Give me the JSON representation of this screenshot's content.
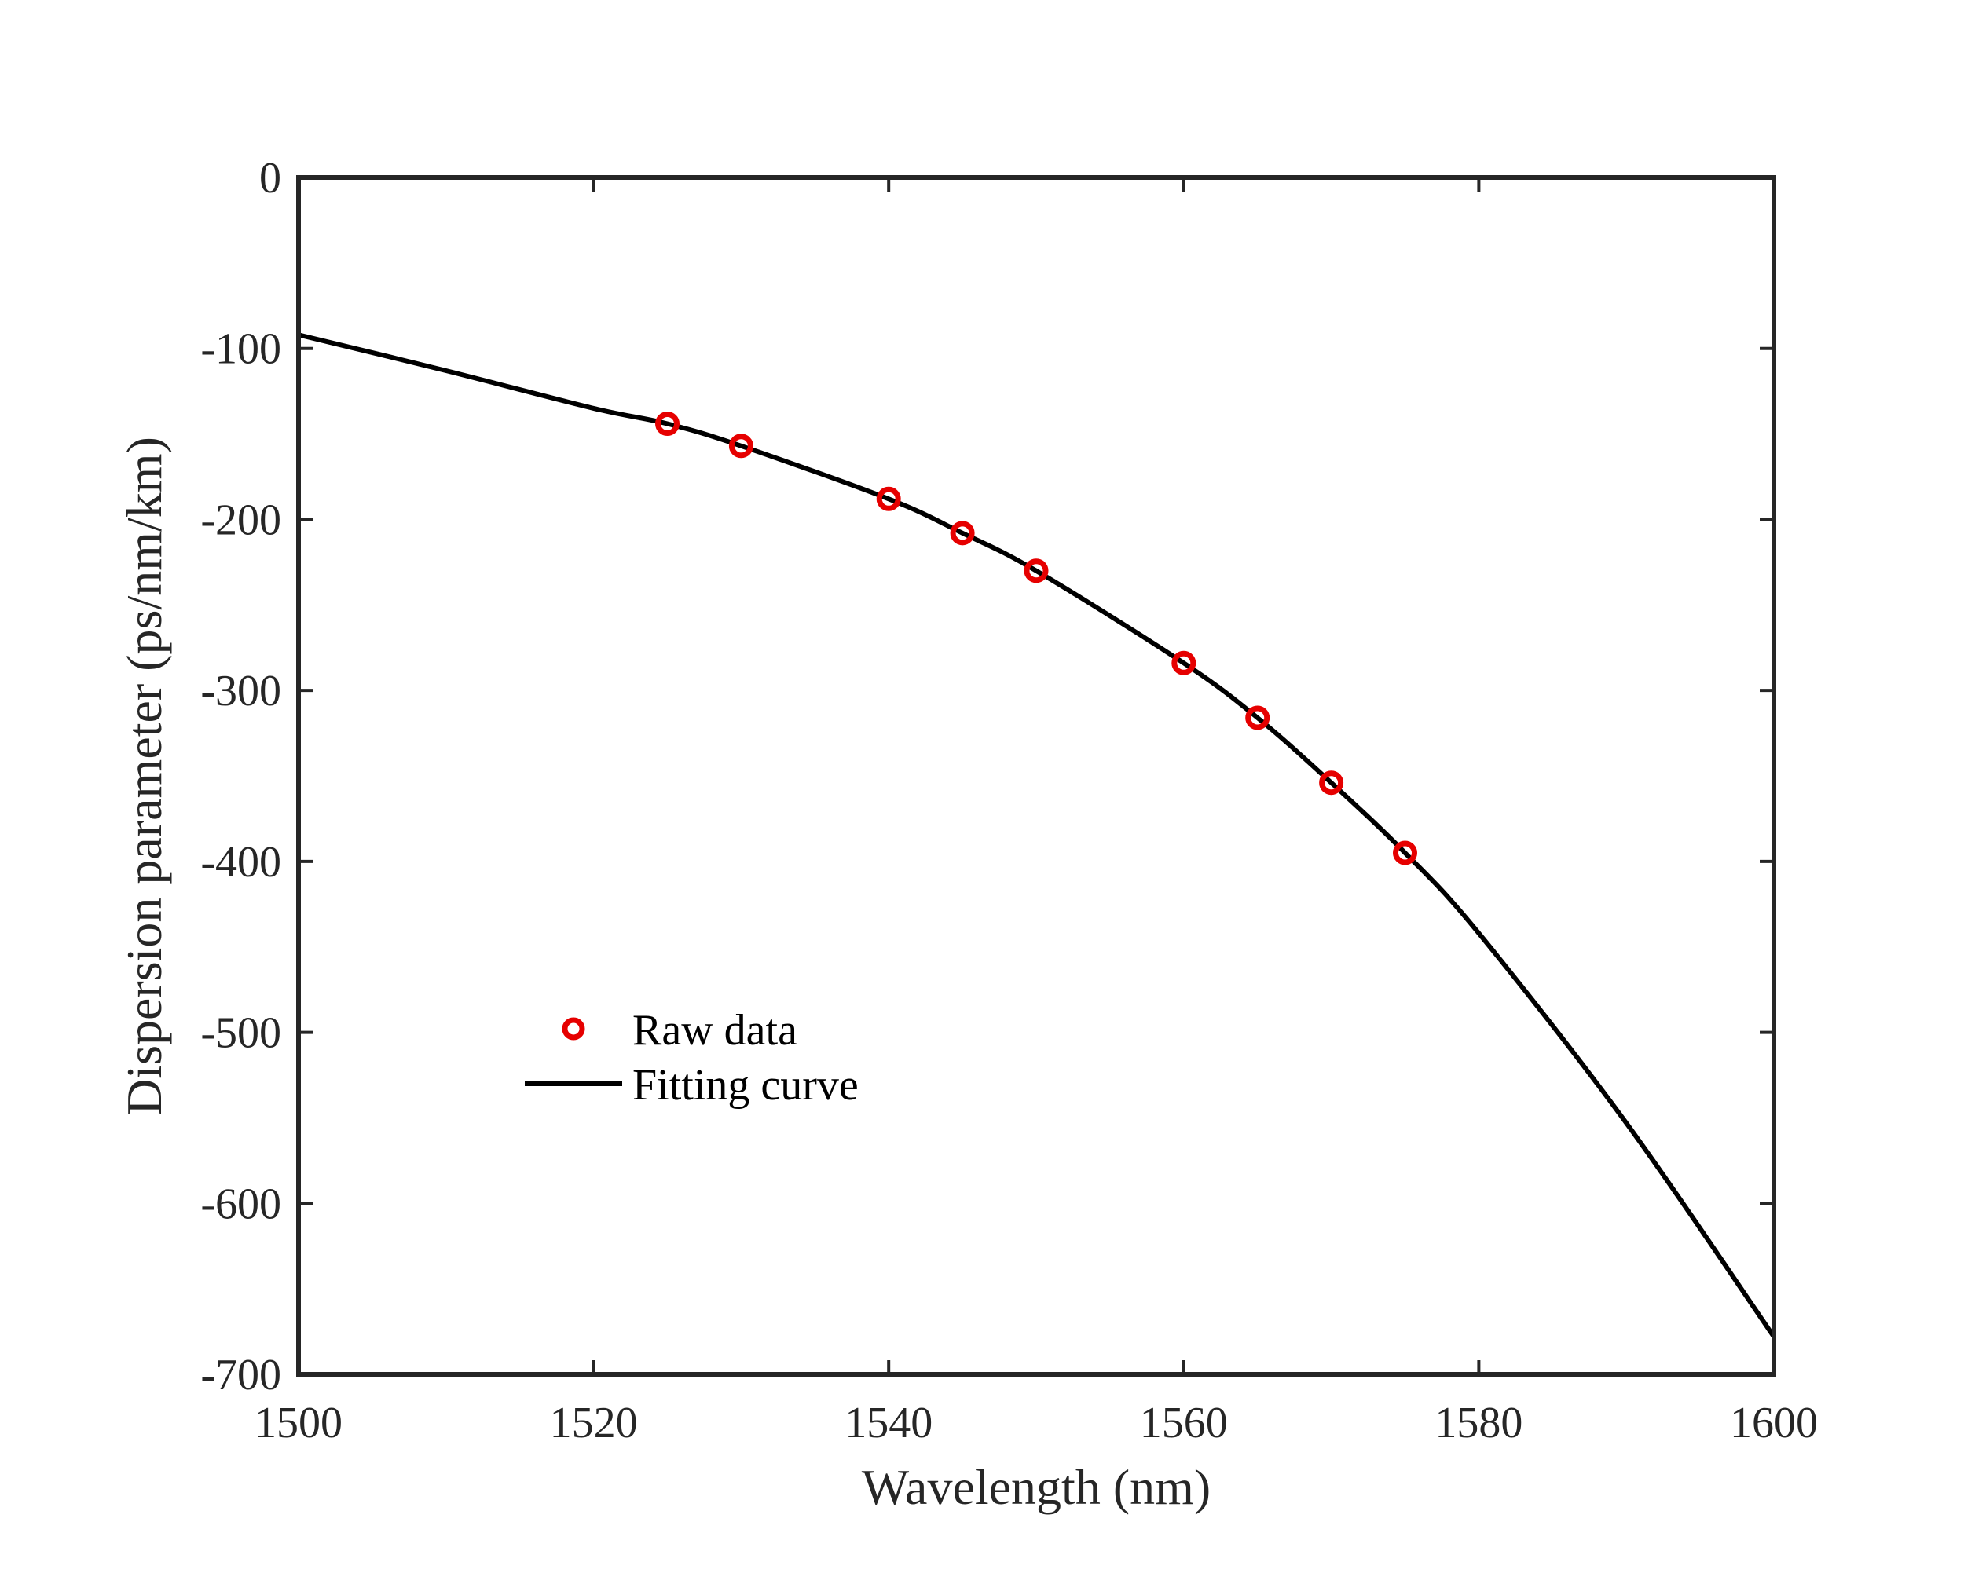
{
  "colors": {
    "axis": "#262626",
    "fit_line": "#000000",
    "raw_marker": "#e60000",
    "background": "#ffffff"
  },
  "chart_data": {
    "type": "scatter",
    "title": "",
    "xlabel": "Wavelength (nm)",
    "ylabel": "Dispersion parameter (ps/nm/km)",
    "xlim": [
      1500,
      1600
    ],
    "ylim": [
      -700,
      0
    ],
    "x_ticks": [
      1500,
      1520,
      1540,
      1560,
      1580,
      1600
    ],
    "y_ticks": [
      0,
      -100,
      -200,
      -300,
      -400,
      -500,
      -600,
      -700
    ],
    "grid": false,
    "legend": {
      "placement": "center-left",
      "entries": [
        "Raw data",
        "Fitting curve"
      ]
    },
    "series": [
      {
        "name": "Raw data",
        "style": "marker-circle",
        "x": [
          1525,
          1530,
          1540,
          1545,
          1550,
          1560,
          1565,
          1570,
          1575
        ],
        "y": [
          -144,
          -157,
          -188,
          -208,
          -230,
          -284,
          -316,
          -354,
          -395
        ]
      },
      {
        "name": "Fitting curve",
        "style": "line",
        "x": [
          1500,
          1510,
          1520,
          1525,
          1530,
          1540,
          1545,
          1550,
          1560,
          1565,
          1570,
          1575,
          1580,
          1590,
          1600
        ],
        "y": [
          -92,
          -113,
          -135,
          -144,
          -157,
          -188,
          -208,
          -230,
          -284,
          -316,
          -354,
          -395,
          -442,
          -553,
          -678
        ]
      }
    ]
  }
}
